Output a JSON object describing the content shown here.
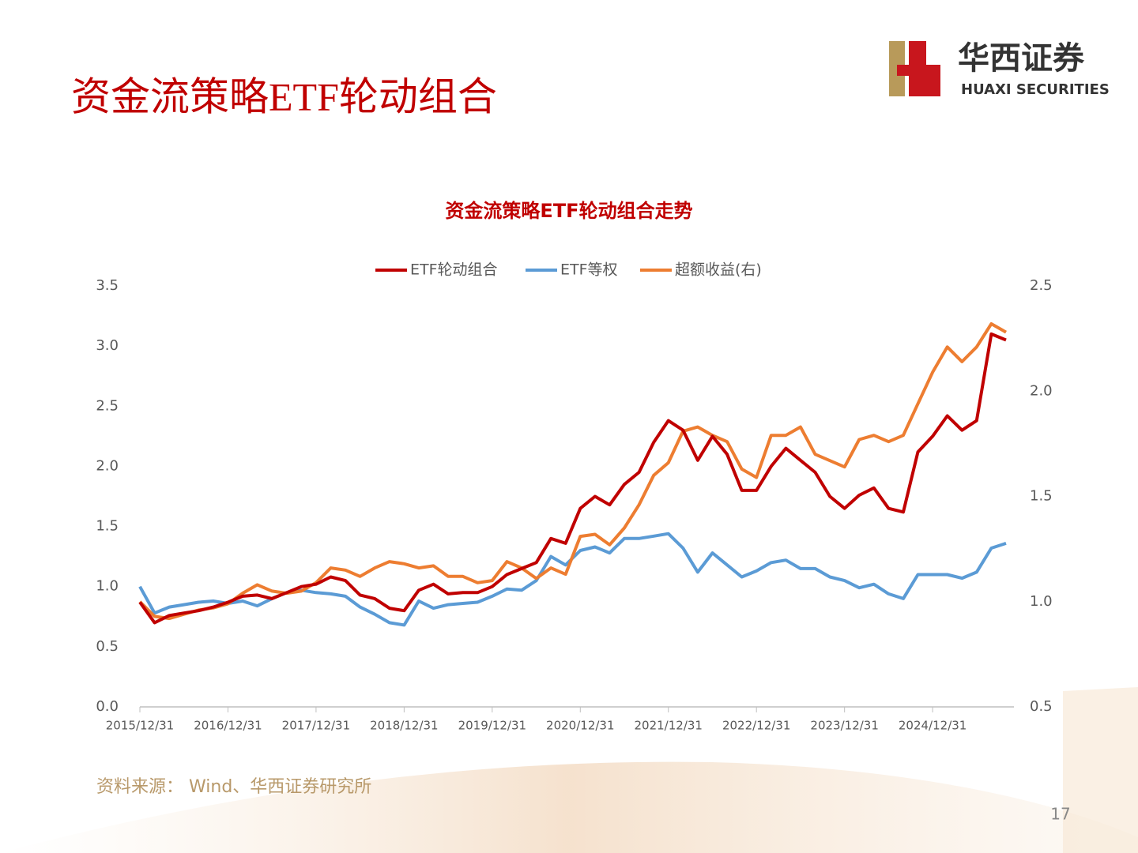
{
  "header": {
    "title": "资金流策略ETF轮动组合",
    "logo_cn": "华西证券",
    "logo_en": "HUAXI SECURITIES"
  },
  "chart_data": {
    "type": "line",
    "title": "资金流策略ETF轮动组合走势",
    "categories": [
      "2015/12/31",
      null,
      null,
      null,
      null,
      null,
      "2016/12/31",
      null,
      null,
      null,
      null,
      null,
      "2017/12/31",
      null,
      null,
      null,
      null,
      null,
      "2018/12/31",
      null,
      null,
      null,
      null,
      null,
      "2019/12/31",
      null,
      null,
      null,
      null,
      null,
      "2020/12/31",
      null,
      null,
      null,
      null,
      null,
      "2021/12/31",
      null,
      null,
      null,
      null,
      null,
      "2022/12/31",
      null,
      null,
      null,
      null,
      null,
      "2023/12/31",
      null,
      null,
      null,
      null,
      null,
      "2024/12/31",
      null,
      null,
      null,
      null,
      null
    ],
    "series": [
      {
        "name": "ETF轮动组合",
        "color": "#c00000",
        "values": [
          0.87,
          0.7,
          0.76,
          0.78,
          0.8,
          0.83,
          0.87,
          0.92,
          0.93,
          0.9,
          0.95,
          1.0,
          1.02,
          1.08,
          1.05,
          0.93,
          0.9,
          0.82,
          0.8,
          0.97,
          1.02,
          0.94,
          0.95,
          0.95,
          1.0,
          1.1,
          1.15,
          1.2,
          1.4,
          1.36,
          1.65,
          1.75,
          1.68,
          1.85,
          1.95,
          2.2,
          2.38,
          2.3,
          2.05,
          2.25,
          2.1,
          1.8,
          1.8,
          2.0,
          2.15,
          2.05,
          1.95,
          1.75,
          1.65,
          1.76,
          1.82,
          1.65,
          1.62,
          2.12,
          2.25,
          2.42,
          2.3,
          2.38,
          3.1,
          3.05
        ]
      },
      {
        "name": "ETF等权",
        "color": "#5b9bd5",
        "values": [
          1.0,
          0.78,
          0.83,
          0.85,
          0.87,
          0.88,
          0.86,
          0.88,
          0.84,
          0.9,
          0.95,
          0.97,
          0.95,
          0.94,
          0.92,
          0.83,
          0.77,
          0.7,
          0.68,
          0.88,
          0.82,
          0.85,
          0.86,
          0.87,
          0.92,
          0.98,
          0.97,
          1.05,
          1.25,
          1.18,
          1.3,
          1.33,
          1.28,
          1.4,
          1.4,
          1.42,
          1.44,
          1.32,
          1.12,
          1.28,
          1.18,
          1.08,
          1.13,
          1.2,
          1.22,
          1.15,
          1.15,
          1.08,
          1.05,
          0.99,
          1.02,
          0.94,
          0.9,
          1.1,
          1.1,
          1.1,
          1.07,
          1.12,
          1.32,
          1.36
        ]
      },
      {
        "name": "超额收益(右)",
        "color": "#ed7d31",
        "axis": "y2",
        "values": [
          1.0,
          0.93,
          0.92,
          0.94,
          0.96,
          0.97,
          0.99,
          1.04,
          1.08,
          1.05,
          1.04,
          1.05,
          1.09,
          1.16,
          1.15,
          1.12,
          1.16,
          1.19,
          1.18,
          1.16,
          1.17,
          1.12,
          1.12,
          1.09,
          1.1,
          1.19,
          1.16,
          1.11,
          1.16,
          1.13,
          1.31,
          1.32,
          1.27,
          1.35,
          1.46,
          1.6,
          1.66,
          1.81,
          1.83,
          1.79,
          1.76,
          1.63,
          1.59,
          1.79,
          1.79,
          1.83,
          1.7,
          1.67,
          1.64,
          1.77,
          1.79,
          1.76,
          1.79,
          1.94,
          2.09,
          2.21,
          2.14,
          2.21,
          2.32,
          2.28
        ]
      }
    ],
    "ylim": [
      0,
      3.5
    ],
    "yticks": [
      {
        "value": 0,
        "label": "0.0"
      },
      0.5,
      {
        "value": 1,
        "label": "1.0"
      },
      1.5,
      {
        "value": 2,
        "label": "2.0"
      },
      2.5,
      {
        "value": 3,
        "label": "3.0"
      },
      3.5
    ],
    "y2lim": [
      0.5,
      2.5
    ],
    "y2ticks": [
      0.5,
      {
        "value": 1,
        "label": "1.0"
      },
      1.5,
      {
        "value": 2,
        "label": "2.0"
      },
      2.5
    ],
    "legend": "top",
    "grid": false
  },
  "footer": {
    "source": "资料来源： Wind、华西证券研究所",
    "page": "17"
  }
}
